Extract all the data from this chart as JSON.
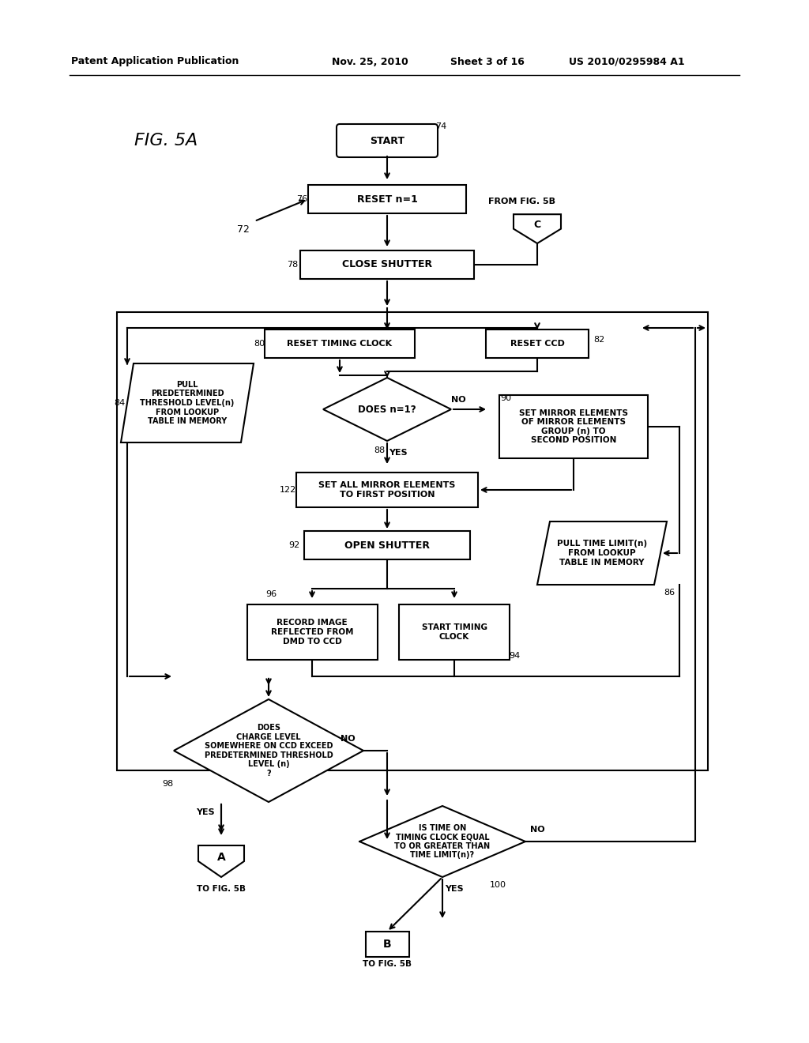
{
  "bg_color": "#ffffff",
  "header_line1": "Patent Application Publication",
  "header_line2": "Nov. 25, 2010",
  "header_line3": "Sheet 3 of 16",
  "header_line4": "US 2010/0295984 A1",
  "fig_label": "FIG. 5A"
}
